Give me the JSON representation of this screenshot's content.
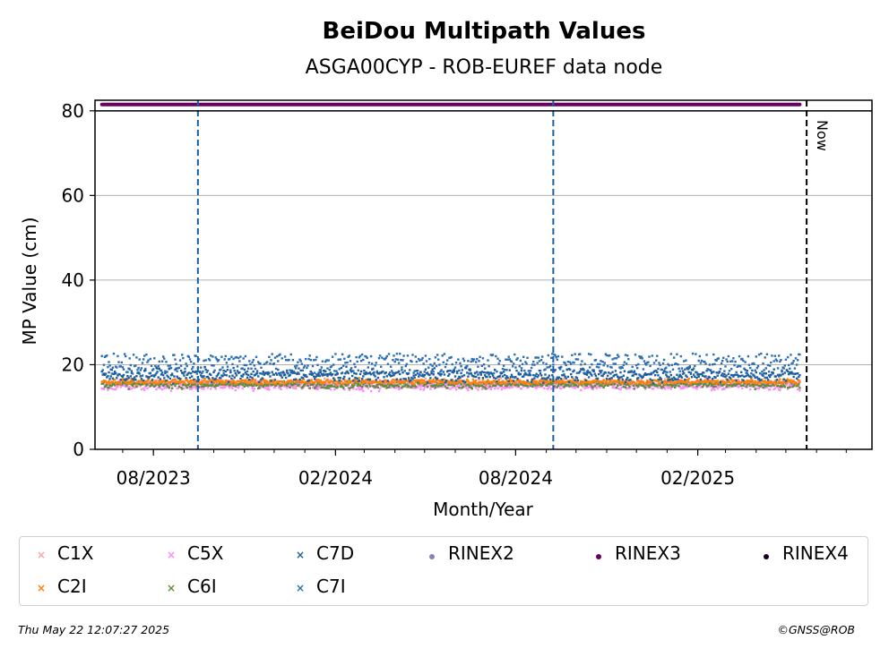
{
  "chart_data": {
    "type": "scatter",
    "title": "BeiDou Multipath Values",
    "subtitle": "ASGA00CYP - ROB-EUREF data node",
    "xlabel": "Month/Year",
    "ylabel": "MP Value (cm)",
    "ylim": [
      0,
      82.5
    ],
    "xlim": [
      "2023-06-03",
      "2025-07-27"
    ],
    "x_tick_labels": [
      "08/2023",
      "02/2024",
      "08/2024",
      "02/2025"
    ],
    "x_tick_dates": [
      "2023-08-01",
      "2024-02-01",
      "2024-08-01",
      "2025-02-01"
    ],
    "y_ticks": [
      0,
      20,
      40,
      60,
      80
    ],
    "grid": "horizontal",
    "legend_placement": "below",
    "vertical_markers": [
      {
        "date": "2023-09-15",
        "style": "dashed",
        "color": "#1560a8"
      },
      {
        "date": "2024-09-08",
        "style": "dashed",
        "color": "#1560a8"
      },
      {
        "date": "2025-05-22",
        "style": "dashed",
        "color": "#000000",
        "label": "Now"
      }
    ],
    "data_range": [
      "2023-06-10",
      "2025-05-15"
    ],
    "series": [
      {
        "name": "C1X",
        "color": "#f4a6a6",
        "marker": "x",
        "mean": 15.5,
        "spread": 1.0
      },
      {
        "name": "C2I",
        "color": "#ff7f0e",
        "marker": "x",
        "mean": 16.0,
        "spread": 0.6
      },
      {
        "name": "C5X",
        "color": "#ff88ff",
        "marker": "x",
        "mean": 15.0,
        "spread": 1.0
      },
      {
        "name": "C6I",
        "color": "#5b8f3c",
        "marker": "x",
        "mean": 15.3,
        "spread": 0.8
      },
      {
        "name": "C7D",
        "color": "#1f5f9e",
        "marker": "x",
        "mean": 17.5,
        "spread": 1.5
      },
      {
        "name": "C7I",
        "color": "#2f6fb5",
        "marker": "x",
        "mean": 19.5,
        "spread": 3.0
      },
      {
        "name": "RINEX2",
        "color": "#8b7fc0",
        "marker": "o"
      },
      {
        "name": "RINEX3",
        "color": "#6b0060",
        "marker": "o",
        "constant": 81.5
      },
      {
        "name": "RINEX4",
        "color": "#1a0020",
        "marker": "o"
      }
    ]
  },
  "footer": {
    "timestamp": "Thu May 22 12:07:27 2025",
    "copyright": "©GNSS@ROB"
  }
}
